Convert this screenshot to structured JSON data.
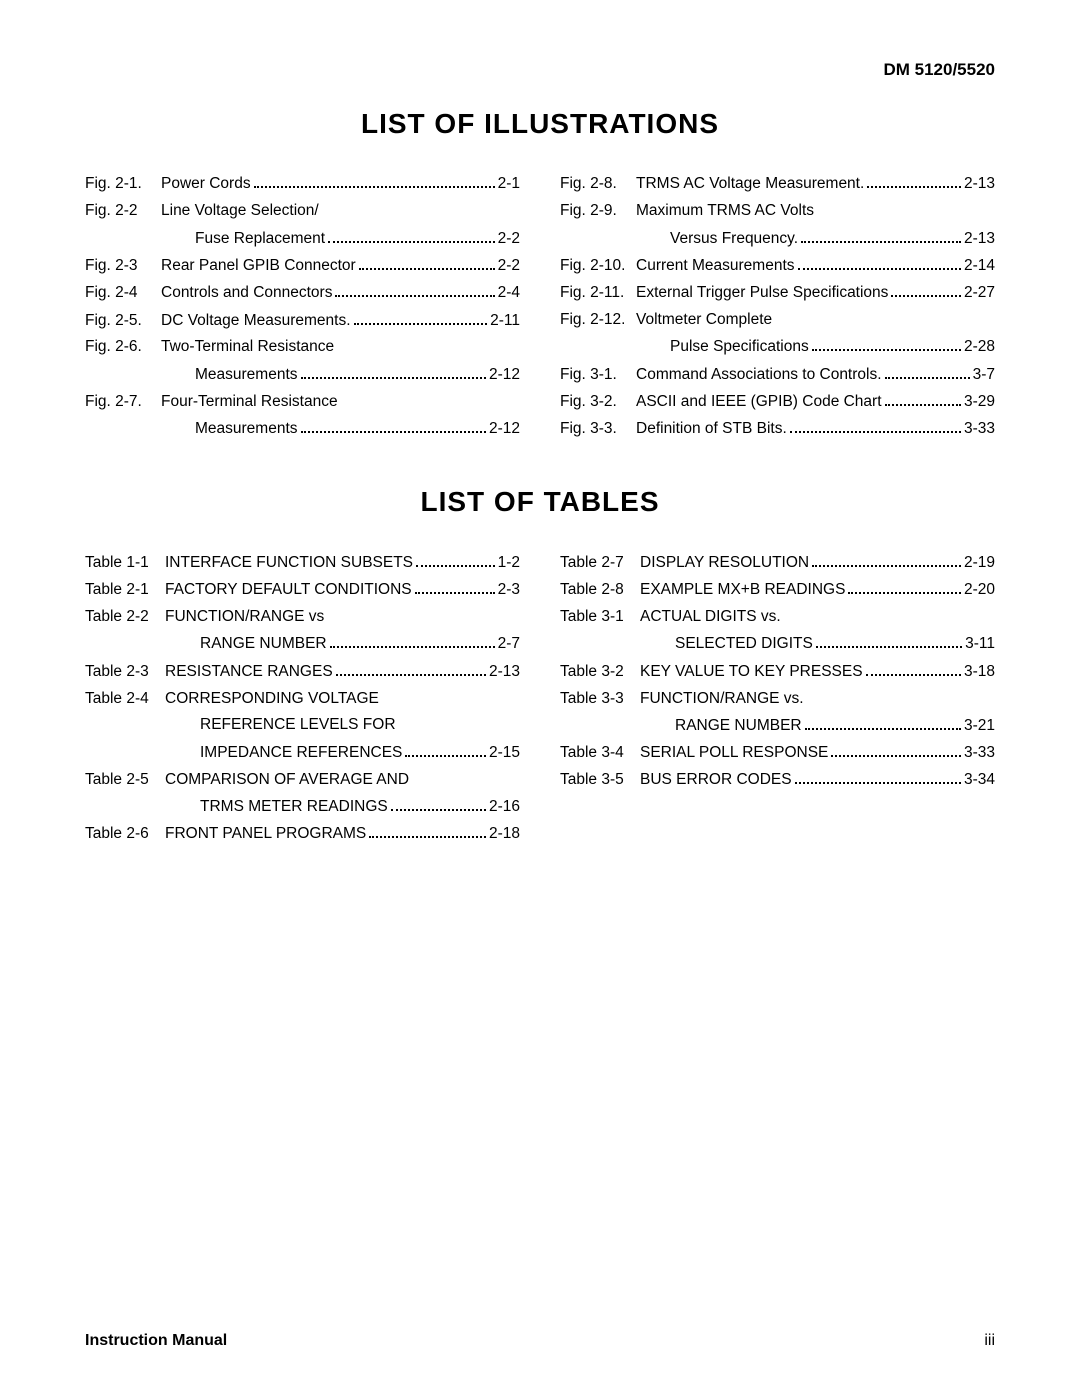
{
  "header": {
    "doc_id": "DM 5120/5520"
  },
  "sections": {
    "illustrations": {
      "title": "LIST OF ILLUSTRATIONS",
      "left": [
        {
          "label": "Fig. 2-1.",
          "title": "Power Cords",
          "page": "2-1"
        },
        {
          "label": "Fig. 2-2",
          "title": "Line Voltage Selection/",
          "page": null,
          "sub": {
            "title": "Fuse Replacement",
            "page": "2-2"
          }
        },
        {
          "label": "Fig. 2-3",
          "title": "Rear Panel GPIB Connector",
          "page": "2-2"
        },
        {
          "label": "Fig. 2-4",
          "title": "Controls and Connectors",
          "page": "2-4"
        },
        {
          "label": "Fig. 2-5.",
          "title": "DC Voltage Measurements.",
          "page": "2-11"
        },
        {
          "label": "Fig. 2-6.",
          "title": "Two-Terminal Resistance",
          "page": null,
          "sub": {
            "title": "Measurements",
            "page": "2-12"
          }
        },
        {
          "label": "Fig. 2-7.",
          "title": "Four-Terminal Resistance",
          "page": null,
          "sub": {
            "title": "Measurements",
            "page": "2-12"
          }
        }
      ],
      "right": [
        {
          "label": "Fig. 2-8.",
          "title": "TRMS AC Voltage Measurement.",
          "page": "2-13"
        },
        {
          "label": "Fig. 2-9.",
          "title": "Maximum TRMS AC Volts",
          "page": null,
          "sub": {
            "title": "Versus Frequency.",
            "page": "2-13"
          }
        },
        {
          "label": "Fig. 2-10.",
          "title": "Current Measurements",
          "page": "2-14"
        },
        {
          "label": "Fig. 2-11.",
          "title": "External Trigger Pulse Specifications",
          "page": "2-27"
        },
        {
          "label": "Fig. 2-12.",
          "title": "Voltmeter Complete",
          "page": null,
          "sub": {
            "title": "Pulse Specifications",
            "page": "2-28"
          }
        },
        {
          "label": "Fig. 3-1.",
          "title": "Command Associations to Controls.",
          "page": "3-7"
        },
        {
          "label": "Fig. 3-2.",
          "title": "ASCII and IEEE (GPIB) Code Chart",
          "page": "3-29"
        },
        {
          "label": "Fig. 3-3.",
          "title": "Definition of STB Bits.",
          "page": "3-33"
        }
      ]
    },
    "tables": {
      "title": "LIST OF TABLES",
      "left": [
        {
          "label": "Table 1-1",
          "title": "INTERFACE FUNCTION SUBSETS",
          "page": "1-2"
        },
        {
          "label": "Table 2-1",
          "title": "FACTORY DEFAULT CONDITIONS",
          "page": "2-3"
        },
        {
          "label": "Table 2-2",
          "title": "FUNCTION/RANGE vs",
          "page": null,
          "sub": {
            "title": "RANGE NUMBER",
            "page": "2-7"
          }
        },
        {
          "label": "Table 2-3",
          "title": "RESISTANCE RANGES",
          "page": "2-13"
        },
        {
          "label": "Table 2-4",
          "title": "CORRESPONDING VOLTAGE",
          "page": null,
          "sub": {
            "title": "REFERENCE LEVELS FOR",
            "page": null,
            "sub": {
              "title": "IMPEDANCE REFERENCES",
              "page": "2-15"
            }
          }
        },
        {
          "label": "Table 2-5",
          "title": "COMPARISON OF AVERAGE AND",
          "page": null,
          "sub": {
            "title": "TRMS METER READINGS",
            "page": "2-16"
          }
        },
        {
          "label": "Table 2-6",
          "title": "FRONT PANEL PROGRAMS",
          "page": "2-18"
        }
      ],
      "right": [
        {
          "label": "Table 2-7",
          "title": "DISPLAY RESOLUTION",
          "page": "2-19"
        },
        {
          "label": "Table 2-8",
          "title": "EXAMPLE MX+B READINGS",
          "page": "2-20"
        },
        {
          "label": "Table 3-1",
          "title": "ACTUAL DIGITS vs.",
          "page": null,
          "sub": {
            "title": "SELECTED DIGITS",
            "page": "3-11"
          }
        },
        {
          "label": "Table 3-2",
          "title": "KEY VALUE TO KEY PRESSES",
          "page": "3-18"
        },
        {
          "label": "Table 3-3",
          "title": "FUNCTION/RANGE vs.",
          "page": null,
          "sub": {
            "title": "RANGE NUMBER",
            "page": "3-21"
          }
        },
        {
          "label": "Table 3-4",
          "title": "SERIAL POLL RESPONSE",
          "page": "3-33"
        },
        {
          "label": "Table 3-5",
          "title": "BUS ERROR CODES",
          "page": "3-34"
        }
      ]
    }
  },
  "footer": {
    "left": "Instruction Manual",
    "right": "iii"
  },
  "style": {
    "label_width_fig": 76,
    "label_width_tbl": 80,
    "font_color": "#000000",
    "bg_color": "#ffffff"
  }
}
